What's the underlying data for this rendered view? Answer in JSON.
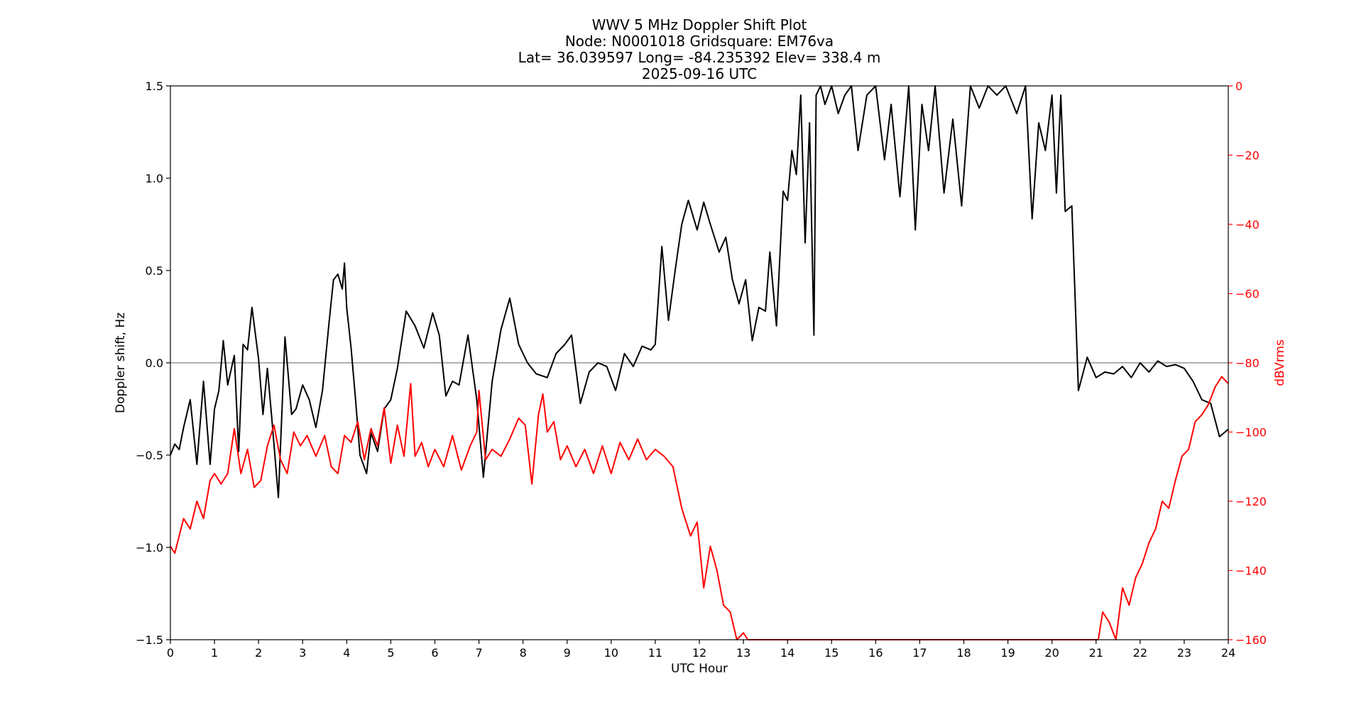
{
  "chart_data": {
    "type": "line",
    "title": [
      "WWV 5 MHz Doppler Shift Plot",
      "Node:  N0001018     Gridsquare:  EM76va",
      "Lat= 36.039597    Long= -84.235392    Elev= 338.4 m",
      "2025-09-16  UTC"
    ],
    "xlabel": "UTC Hour",
    "ylabel_left": "Doppler shift, Hz",
    "ylabel_right": "dBVrms",
    "xlim": [
      0,
      24
    ],
    "ylim_left": [
      -1.5,
      1.5
    ],
    "ylim_right": [
      -160,
      0
    ],
    "xticks": [
      "0",
      "1",
      "2",
      "3",
      "4",
      "5",
      "6",
      "7",
      "8",
      "9",
      "10",
      "11",
      "12",
      "13",
      "14",
      "15",
      "16",
      "17",
      "18",
      "19",
      "20",
      "21",
      "22",
      "23",
      "24"
    ],
    "yticks_left": [
      "1.5",
      "1.0",
      "0.5",
      "0.0",
      "−0.5",
      "−1.0",
      "−1.5"
    ],
    "yticks_right": [
      "0",
      "−20",
      "−40",
      "−60",
      "−80",
      "−100",
      "−120",
      "−140",
      "−160"
    ],
    "yticks_left_values": [
      1.5,
      1.0,
      0.5,
      0.0,
      -0.5,
      -1.0,
      -1.5
    ],
    "yticks_right_values": [
      0,
      -20,
      -40,
      -60,
      -80,
      -100,
      -120,
      -140,
      -160
    ],
    "zero_line": true,
    "colors": {
      "doppler": "#000000",
      "power": "#ff0000",
      "zero_line": "#808080",
      "right_axis": "#ff0000"
    },
    "series": [
      {
        "axis": "left",
        "x": [
          0,
          0.1,
          0.2,
          0.3,
          0.45,
          0.6,
          0.75,
          0.9,
          1.0,
          1.1,
          1.2,
          1.3,
          1.45,
          1.55,
          1.65,
          1.75,
          1.85,
          2.0,
          2.1,
          2.2,
          2.3,
          2.45,
          2.6,
          2.75,
          2.85,
          3.0,
          3.15,
          3.3,
          3.45,
          3.6,
          3.7,
          3.8,
          3.9,
          3.95,
          4.0,
          4.1,
          4.2,
          4.3,
          4.45,
          4.55,
          4.7,
          4.85,
          5.0,
          5.15,
          5.35,
          5.55,
          5.75,
          5.95,
          6.1,
          6.25,
          6.4,
          6.55,
          6.75,
          6.95,
          7.1,
          7.3,
          7.5,
          7.7,
          7.9,
          8.1,
          8.3,
          8.55,
          8.75,
          8.95,
          9.1,
          9.3,
          9.5,
          9.7,
          9.9,
          10.1,
          10.3,
          10.5,
          10.7,
          10.9,
          11.0,
          11.15,
          11.3,
          11.45,
          11.6,
          11.75,
          11.95,
          12.1,
          12.25,
          12.45,
          12.6,
          12.75,
          12.9,
          13.05,
          13.2,
          13.35,
          13.5,
          13.6,
          13.75,
          13.9,
          14.0,
          14.1,
          14.2,
          14.3,
          14.4,
          14.5,
          14.6,
          14.65,
          14.75,
          14.85,
          15.0,
          15.15,
          15.3,
          15.45,
          15.6,
          15.8,
          16.0,
          16.2,
          16.35,
          16.55,
          16.75,
          16.9,
          17.05,
          17.2,
          17.35,
          17.55,
          17.75,
          17.95,
          18.15,
          18.35,
          18.55,
          18.75,
          18.95,
          19.2,
          19.4,
          19.55,
          19.7,
          19.85,
          20.0,
          20.1,
          20.2,
          20.3,
          20.45,
          20.6,
          20.8,
          21.0,
          21.2,
          21.4,
          21.6,
          21.8,
          22.0,
          22.2,
          22.4,
          22.6,
          22.8,
          23.0,
          23.2,
          23.4,
          23.6,
          23.8,
          24.0
        ],
        "values": [
          -0.5,
          -0.44,
          -0.47,
          -0.35,
          -0.2,
          -0.55,
          -0.1,
          -0.55,
          -0.25,
          -0.15,
          0.12,
          -0.12,
          0.04,
          -0.48,
          0.1,
          0.07,
          0.3,
          0.02,
          -0.28,
          -0.03,
          -0.3,
          -0.73,
          0.14,
          -0.28,
          -0.25,
          -0.12,
          -0.2,
          -0.35,
          -0.15,
          0.22,
          0.45,
          0.48,
          0.4,
          0.54,
          0.3,
          0.08,
          -0.2,
          -0.5,
          -0.6,
          -0.38,
          -0.48,
          -0.25,
          -0.2,
          -0.03,
          0.28,
          0.2,
          0.08,
          0.27,
          0.15,
          -0.18,
          -0.1,
          -0.12,
          0.15,
          -0.2,
          -0.62,
          -0.1,
          0.18,
          0.35,
          0.1,
          0.0,
          -0.06,
          -0.08,
          0.05,
          0.1,
          0.15,
          -0.22,
          -0.05,
          0.0,
          -0.02,
          -0.15,
          0.05,
          -0.02,
          0.09,
          0.07,
          0.1,
          0.63,
          0.23,
          0.5,
          0.75,
          0.88,
          0.72,
          0.87,
          0.75,
          0.6,
          0.68,
          0.45,
          0.32,
          0.45,
          0.12,
          0.3,
          0.28,
          0.6,
          0.2,
          0.93,
          0.88,
          1.15,
          1.02,
          1.45,
          0.65,
          1.3,
          0.15,
          1.45,
          1.5,
          1.4,
          1.5,
          1.35,
          1.45,
          1.5,
          1.15,
          1.45,
          1.5,
          1.1,
          1.4,
          0.9,
          1.5,
          0.72,
          1.4,
          1.15,
          1.5,
          0.92,
          1.32,
          0.85,
          1.5,
          1.38,
          1.5,
          1.45,
          1.5,
          1.35,
          1.5,
          0.78,
          1.3,
          1.15,
          1.45,
          0.92,
          1.45,
          0.82,
          0.85,
          -0.15,
          0.03,
          -0.08,
          -0.05,
          -0.06,
          -0.02,
          -0.08,
          0.0,
          -0.05,
          0.01,
          -0.02,
          -0.01,
          -0.03,
          -0.1,
          -0.2,
          -0.22,
          -0.4,
          -0.36
        ]
      },
      {
        "axis": "right",
        "x": [
          0,
          0.1,
          0.2,
          0.3,
          0.45,
          0.6,
          0.75,
          0.9,
          1.0,
          1.15,
          1.3,
          1.45,
          1.6,
          1.75,
          1.9,
          2.05,
          2.2,
          2.35,
          2.5,
          2.65,
          2.8,
          2.95,
          3.1,
          3.3,
          3.5,
          3.65,
          3.8,
          3.95,
          4.1,
          4.25,
          4.4,
          4.55,
          4.7,
          4.85,
          5.0,
          5.15,
          5.3,
          5.45,
          5.55,
          5.7,
          5.85,
          6.0,
          6.2,
          6.4,
          6.6,
          6.8,
          6.95,
          7.0,
          7.15,
          7.3,
          7.5,
          7.7,
          7.9,
          8.05,
          8.2,
          8.35,
          8.45,
          8.55,
          8.7,
          8.85,
          9.0,
          9.2,
          9.4,
          9.6,
          9.8,
          10.0,
          10.2,
          10.4,
          10.6,
          10.8,
          11.0,
          11.2,
          11.4,
          11.6,
          11.8,
          11.95,
          12.1,
          12.25,
          12.4,
          12.55,
          12.7,
          12.85,
          13.0,
          13.1,
          20.95,
          21.05,
          21.15,
          21.3,
          21.45,
          21.6,
          21.75,
          21.9,
          22.05,
          22.2,
          22.35,
          22.5,
          22.65,
          22.8,
          22.95,
          23.1,
          23.25,
          23.4,
          23.55,
          23.7,
          23.85,
          24.0
        ],
        "values": [
          -133,
          -135,
          -130,
          -125,
          -128,
          -120,
          -125,
          -114,
          -112,
          -115,
          -112,
          -99,
          -112,
          -105,
          -116,
          -114,
          -104,
          -98,
          -108,
          -112,
          -100,
          -104,
          -101,
          -107,
          -101,
          -110,
          -112,
          -101,
          -103,
          -97,
          -108,
          -99,
          -104,
          -93,
          -109,
          -98,
          -107,
          -86,
          -107,
          -103,
          -110,
          -105,
          -110,
          -101,
          -111,
          -104,
          -100,
          -88,
          -108,
          -105,
          -107,
          -102,
          -96,
          -98,
          -115,
          -95,
          -89,
          -100,
          -97,
          -108,
          -104,
          -110,
          -105,
          -112,
          -104,
          -112,
          -103,
          -108,
          -102,
          -108,
          -105,
          -107,
          -110,
          -122,
          -130,
          -126,
          -145,
          -133,
          -140,
          -150,
          -152,
          -162,
          -158,
          -160,
          -160,
          -164,
          -152,
          -155,
          -162,
          -145,
          -150,
          -142,
          -138,
          -132,
          -128,
          -120,
          -122,
          -114,
          -107,
          -105,
          -97,
          -95,
          -92,
          -87,
          -84,
          -86
        ]
      }
    ]
  }
}
